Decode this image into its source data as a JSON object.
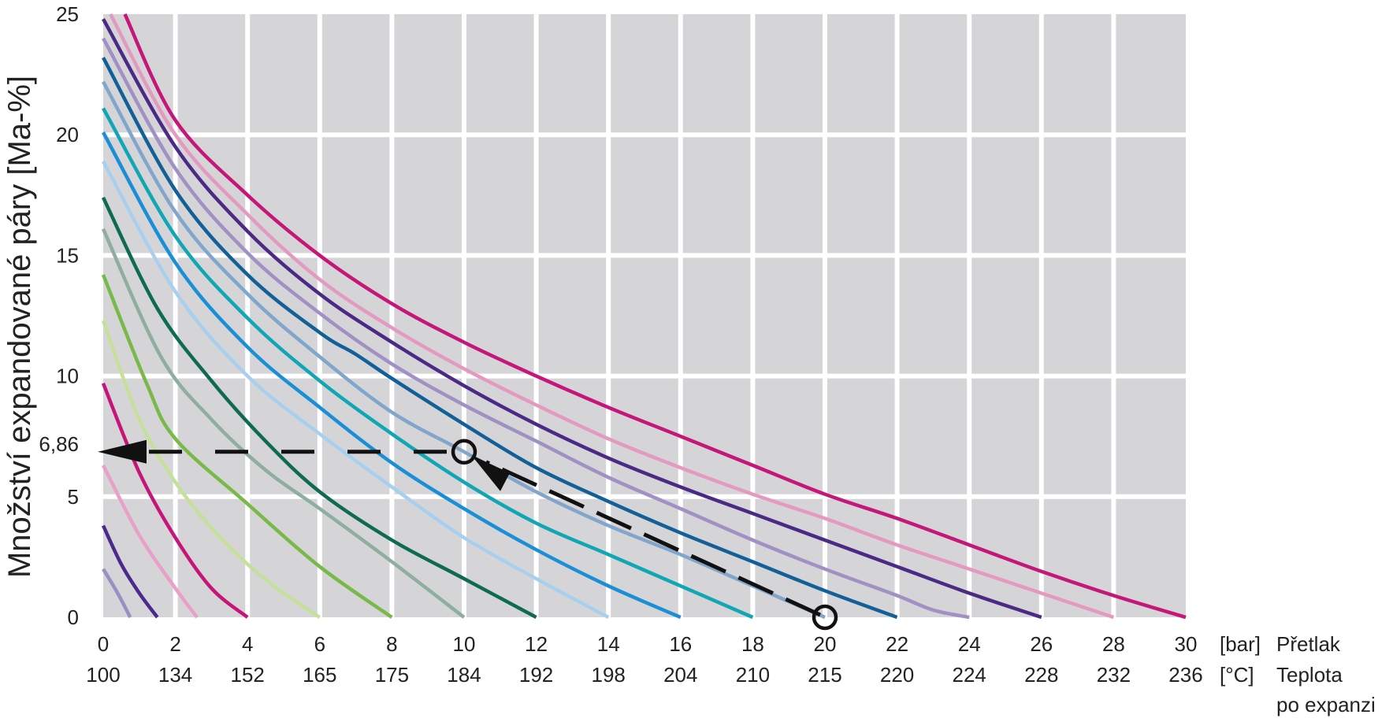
{
  "chart_data": {
    "type": "line",
    "ylabel": "Množství expandované páry [Ma-%]",
    "x_unit": "[bar]",
    "x_title": "Přetlak",
    "x2_unit": "[°C]",
    "x2_title_line1": "Teplota",
    "x2_title_line2": "po expanzi",
    "xlim": [
      0,
      30
    ],
    "ylim": [
      0,
      25
    ],
    "x_ticks": [
      0,
      2,
      4,
      6,
      8,
      10,
      12,
      14,
      16,
      18,
      20,
      22,
      24,
      26,
      28,
      30
    ],
    "x_tick_labels": [
      "0",
      "2",
      "4",
      "6",
      "8",
      "10",
      "12",
      "14",
      "16",
      "18",
      "20",
      "22",
      "24",
      "26",
      "28",
      "30"
    ],
    "x2_tick_labels": [
      "100",
      "134",
      "152",
      "165",
      "175",
      "184",
      "192",
      "198",
      "204",
      "210",
      "215",
      "220",
      "224",
      "228",
      "232",
      "236"
    ],
    "y_ticks": [
      0,
      5,
      10,
      15,
      20,
      25
    ],
    "y_tick_labels": [
      "0",
      "5",
      "10",
      "15",
      "20",
      "25"
    ],
    "grid": true,
    "grid_x": [
      2,
      4,
      6,
      8,
      10,
      12,
      14,
      16,
      18,
      20,
      22,
      24,
      26,
      28
    ],
    "grid_y": [
      5,
      10,
      15,
      20
    ],
    "annotation": {
      "value_label": "6,86",
      "y_value": 6.86,
      "start_point": [
        20,
        0
      ],
      "intersection_point": [
        10,
        6.86
      ],
      "end_x": 0
    },
    "series": [
      {
        "end_pressure": 1,
        "color": "#9b8ec4",
        "points": [
          [
            0,
            2
          ],
          [
            0.4,
            1
          ],
          [
            0.75,
            0
          ]
        ]
      },
      {
        "end_pressure": 2,
        "color": "#4a2a8c",
        "points": [
          [
            0,
            3.8
          ],
          [
            0.5,
            2.2
          ],
          [
            1,
            1
          ],
          [
            1.5,
            0
          ]
        ]
      },
      {
        "end_pressure": 3,
        "color": "#e8a0c8",
        "points": [
          [
            0,
            6.3
          ],
          [
            1,
            3.4
          ],
          [
            2,
            1.2
          ],
          [
            2.6,
            0
          ]
        ]
      },
      {
        "end_pressure": 4,
        "color": "#c6157a",
        "points": [
          [
            0,
            9.7
          ],
          [
            1,
            6
          ],
          [
            2,
            3.3
          ],
          [
            3,
            1.2
          ],
          [
            4,
            0
          ]
        ]
      },
      {
        "end_pressure": 6,
        "color": "#c5e09a",
        "points": [
          [
            0,
            12.3
          ],
          [
            1,
            8.2
          ],
          [
            2,
            5.6
          ],
          [
            3,
            3.7
          ],
          [
            4,
            2.2
          ],
          [
            5,
            1
          ],
          [
            6,
            0
          ]
        ]
      },
      {
        "end_pressure": 8,
        "color": "#78b94a",
        "points": [
          [
            0,
            14.2
          ],
          [
            1.2,
            9.7
          ],
          [
            2,
            7.4
          ],
          [
            4,
            4.7
          ],
          [
            6,
            2.1
          ],
          [
            8,
            0
          ]
        ]
      },
      {
        "end_pressure": 10,
        "color": "#8eae9e",
        "points": [
          [
            0,
            16.1
          ],
          [
            1.6,
            10.8
          ],
          [
            3,
            8.2
          ],
          [
            4.5,
            6.1
          ],
          [
            6,
            4.5
          ],
          [
            8,
            2.3
          ],
          [
            10,
            0
          ]
        ]
      },
      {
        "end_pressure": 12,
        "color": "#0f6a52",
        "points": [
          [
            0,
            17.4
          ],
          [
            1.5,
            12.8
          ],
          [
            3,
            9.8
          ],
          [
            4.5,
            7.3
          ],
          [
            6,
            5.2
          ],
          [
            8,
            3.2
          ],
          [
            10,
            1.6
          ],
          [
            12,
            0
          ]
        ]
      },
      {
        "end_pressure": 14,
        "color": "#a8d0ee",
        "points": [
          [
            0,
            18.9
          ],
          [
            2,
            13.5
          ],
          [
            4,
            10
          ],
          [
            6,
            7.6
          ],
          [
            8,
            5.4
          ],
          [
            10,
            3.3
          ],
          [
            12,
            1.6
          ],
          [
            14,
            0
          ]
        ]
      },
      {
        "end_pressure": 16,
        "color": "#1a8fd6",
        "points": [
          [
            0,
            20.1
          ],
          [
            2,
            14.7
          ],
          [
            4,
            11.2
          ],
          [
            6,
            8.7
          ],
          [
            8,
            6.4
          ],
          [
            10,
            4.5
          ],
          [
            12,
            2.8
          ],
          [
            14,
            1.3
          ],
          [
            16,
            0
          ]
        ]
      },
      {
        "end_pressure": 18,
        "color": "#10a6b4",
        "points": [
          [
            0,
            21.1
          ],
          [
            2,
            15.8
          ],
          [
            4,
            12.4
          ],
          [
            6,
            9.8
          ],
          [
            8,
            7.6
          ],
          [
            10,
            5.6
          ],
          [
            12,
            3.9
          ],
          [
            14,
            2.6
          ],
          [
            16,
            1.3
          ],
          [
            18,
            0
          ]
        ]
      },
      {
        "end_pressure": 20,
        "color": "#80a6cc",
        "points": [
          [
            0,
            22.2
          ],
          [
            2,
            16.8
          ],
          [
            4,
            13.4
          ],
          [
            6,
            10.8
          ],
          [
            8,
            8.5
          ],
          [
            10,
            6.86
          ],
          [
            12,
            5.2
          ],
          [
            14,
            3.8
          ],
          [
            16,
            2.6
          ],
          [
            18,
            1.3
          ],
          [
            20,
            0
          ]
        ]
      },
      {
        "end_pressure": 22,
        "color": "#136098",
        "points": [
          [
            0,
            23.2
          ],
          [
            2,
            17.7
          ],
          [
            4,
            14.2
          ],
          [
            6,
            11.8
          ],
          [
            7,
            10.9
          ],
          [
            8,
            9.9
          ],
          [
            10,
            8
          ],
          [
            12,
            6.2
          ],
          [
            14,
            4.8
          ],
          [
            16,
            3.5
          ],
          [
            18,
            2.3
          ],
          [
            20,
            1.1
          ],
          [
            22,
            0
          ]
        ]
      },
      {
        "end_pressure": 24,
        "color": "#a090c4",
        "points": [
          [
            0,
            24
          ],
          [
            2,
            18.6
          ],
          [
            4,
            15.1
          ],
          [
            6,
            12.6
          ],
          [
            8,
            10.5
          ],
          [
            10,
            8.8
          ],
          [
            12,
            7.3
          ],
          [
            14,
            5.8
          ],
          [
            16,
            4.5
          ],
          [
            18,
            3.2
          ],
          [
            20,
            2
          ],
          [
            22,
            0.9
          ],
          [
            23,
            0.3
          ],
          [
            24,
            0
          ]
        ]
      },
      {
        "end_pressure": 26,
        "color": "#4b2a86",
        "points": [
          [
            0,
            24.8
          ],
          [
            2,
            19.5
          ],
          [
            4,
            16
          ],
          [
            6,
            13.4
          ],
          [
            8,
            11.4
          ],
          [
            10,
            9.6
          ],
          [
            12,
            8
          ],
          [
            14,
            6.6
          ],
          [
            16,
            5.4
          ],
          [
            18,
            4.3
          ],
          [
            20,
            3.2
          ],
          [
            22,
            2.1
          ],
          [
            24,
            1
          ],
          [
            26,
            0
          ]
        ]
      },
      {
        "end_pressure": 28,
        "color": "#e49ac0",
        "points": [
          [
            0.2,
            25
          ],
          [
            2,
            20
          ],
          [
            4,
            16.7
          ],
          [
            6,
            14
          ],
          [
            8,
            12
          ],
          [
            10,
            10.3
          ],
          [
            12,
            8.8
          ],
          [
            14,
            7.4
          ],
          [
            16,
            6.2
          ],
          [
            18,
            5.1
          ],
          [
            20,
            4.1
          ],
          [
            22,
            3
          ],
          [
            24,
            2
          ],
          [
            26,
            1
          ],
          [
            28,
            0
          ]
        ]
      },
      {
        "end_pressure": 30,
        "color": "#c5167a",
        "points": [
          [
            0.6,
            25
          ],
          [
            2,
            20.6
          ],
          [
            4,
            17.5
          ],
          [
            6,
            15
          ],
          [
            8,
            13
          ],
          [
            10,
            11.4
          ],
          [
            12,
            10
          ],
          [
            14,
            8.7
          ],
          [
            16,
            7.5
          ],
          [
            18,
            6.3
          ],
          [
            20,
            5.1
          ],
          [
            22,
            4.1
          ],
          [
            24,
            3
          ],
          [
            26,
            1.9
          ],
          [
            28,
            0.9
          ],
          [
            30,
            0
          ]
        ]
      }
    ]
  }
}
